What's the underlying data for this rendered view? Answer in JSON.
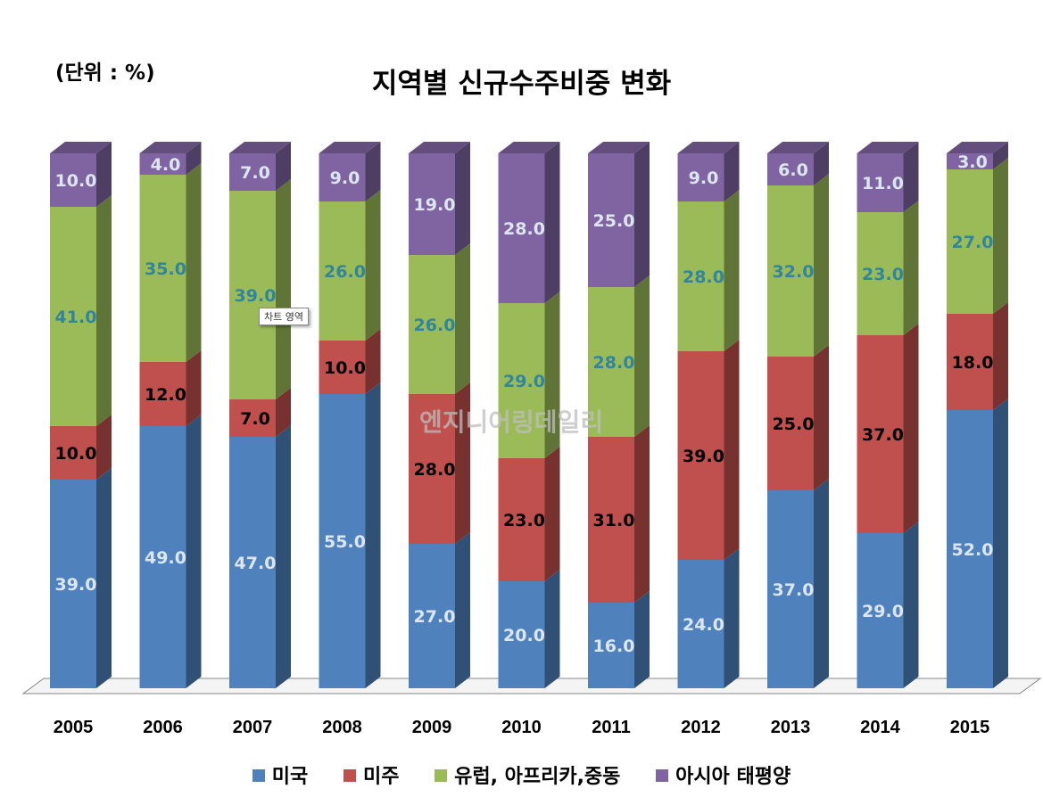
{
  "unit_label": "(단위 : %)",
  "watermark": "엔지니어링데일리",
  "tooltip": "차트 영역",
  "chart_data": {
    "type": "bar",
    "stacked": true,
    "title": "지역별 신규수주비중 변화",
    "categories": [
      "2005",
      "2006",
      "2007",
      "2008",
      "2009",
      "2010",
      "2011",
      "2012",
      "2013",
      "2014",
      "2015"
    ],
    "series": [
      {
        "name": "미국",
        "color": "#4f81bd",
        "values": [
          39,
          49,
          47,
          55,
          27,
          20,
          16,
          24,
          37,
          29,
          52
        ]
      },
      {
        "name": "미주",
        "color": "#c0504d",
        "values": [
          10,
          12,
          7,
          10,
          28,
          23,
          31,
          39,
          25,
          37,
          18
        ]
      },
      {
        "name": "유럽, 아프리카,중동",
        "color": "#9bbb59",
        "values": [
          41,
          35,
          39,
          26,
          26,
          29,
          28,
          28,
          32,
          23,
          27
        ]
      },
      {
        "name": "아시아 태평양",
        "color": "#8064a2",
        "values": [
          10,
          4,
          7,
          9,
          19,
          28,
          25,
          9,
          6,
          11,
          3
        ]
      }
    ],
    "ylim": [
      0,
      100
    ],
    "legend_position": "bottom"
  }
}
